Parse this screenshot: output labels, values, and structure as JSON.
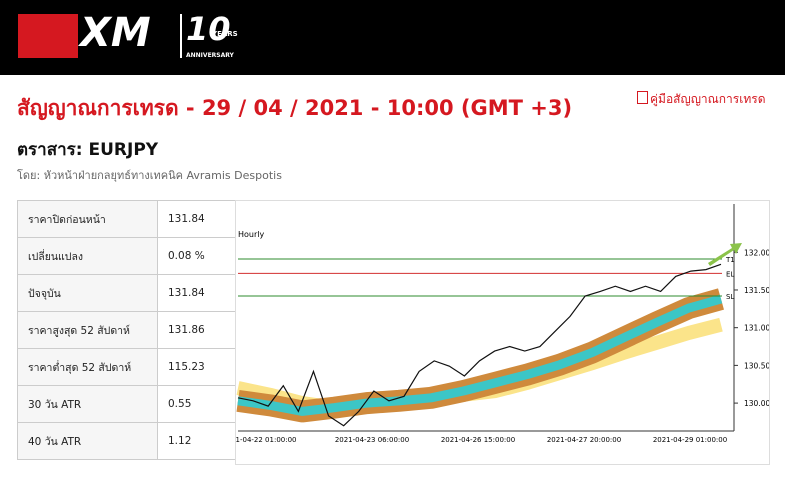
{
  "header": {
    "logo": "XM",
    "anniversary_number": "10",
    "anniversary_years": "YEARS",
    "anniversary_text": "ANNIVERSARY"
  },
  "title": "สัญญาณการเทรด - 29 / 04 / 2021 - 10:00 (GMT +3)",
  "guide_link": "คู่มือสัญญาณการเทรด",
  "instrument": "ตราสาร: EURJPY",
  "author": "โดย: หัวหน้าฝ่ายกลยุทธ์ทางเทคนิค Avramis Despotis",
  "table": {
    "rows": [
      [
        "ราคาปิดก่อนหน้า",
        "131.84"
      ],
      [
        "เปลี่ยนแปลง",
        "0.08 %"
      ],
      [
        "ปัจจุบัน",
        "131.84"
      ],
      [
        "ราคาสูงสุด 52 สัปดาห์",
        "131.86"
      ],
      [
        "ราคาต่ำสุด 52 สัปดาห์",
        "115.23"
      ],
      [
        "30 วัน ATR",
        "0.55"
      ],
      [
        "40 วัน ATR",
        "1.12"
      ]
    ]
  },
  "chart_data": {
    "type": "line",
    "subtitle": "Hourly",
    "ylim": [
      129.63,
      132.64
    ],
    "yticks": [
      {
        "value": 130,
        "label": "130.00"
      },
      {
        "value": 130.5,
        "label": "130.50"
      },
      {
        "value": 131,
        "label": "131.00"
      },
      {
        "value": 131.5,
        "label": "131.50"
      },
      {
        "value": 132,
        "label": "132.00"
      }
    ],
    "xticks": [
      "1-04-22 01:00:00",
      "2021-04-23 06:00:00",
      "2021-04-26 15:00:00",
      "2021-04-27 20:00:00",
      "2021-04-29 01:00:00"
    ],
    "levels": [
      {
        "name": "T1",
        "value": 131.91,
        "color": "#2e8b2e"
      },
      {
        "name": "EL",
        "value": 131.72,
        "color": "#d32f2f"
      },
      {
        "name": "SL",
        "value": 131.42,
        "color": "#2e8b2e"
      }
    ],
    "series": [
      {
        "name": "Price",
        "color": "#111111",
        "values": [
          130.07,
          130.03,
          129.96,
          130.23,
          129.89,
          130.42,
          129.83,
          129.7,
          129.89,
          130.16,
          130.03,
          130.09,
          130.42,
          130.56,
          130.49,
          130.36,
          130.56,
          130.69,
          130.75,
          130.69,
          130.75,
          130.95,
          131.15,
          131.42,
          131.48,
          131.55,
          131.48,
          131.55,
          131.48,
          131.68,
          131.75,
          131.77,
          131.84
        ]
      }
    ],
    "bands": [
      {
        "name": "Outer",
        "color": "#fbe48a",
        "values": [
          130.2,
          130.11,
          130.0,
          129.94,
          129.97,
          130.0,
          130.07,
          130.11,
          130.16,
          130.27,
          130.4,
          130.53,
          130.67,
          130.8,
          130.93,
          131.04
        ]
      },
      {
        "name": "Middle",
        "color": "#cf8a3c",
        "values": [
          130.03,
          129.97,
          129.89,
          129.94,
          130.0,
          130.03,
          130.07,
          130.16,
          130.27,
          130.38,
          130.51,
          130.67,
          130.87,
          131.07,
          131.26,
          131.38
        ]
      },
      {
        "name": "Inner",
        "color": "#3cc6c6",
        "values": [
          130.03,
          129.97,
          129.89,
          129.94,
          130.0,
          130.03,
          130.07,
          130.16,
          130.27,
          130.38,
          130.51,
          130.67,
          130.87,
          131.07,
          131.26,
          131.38
        ]
      }
    ]
  }
}
